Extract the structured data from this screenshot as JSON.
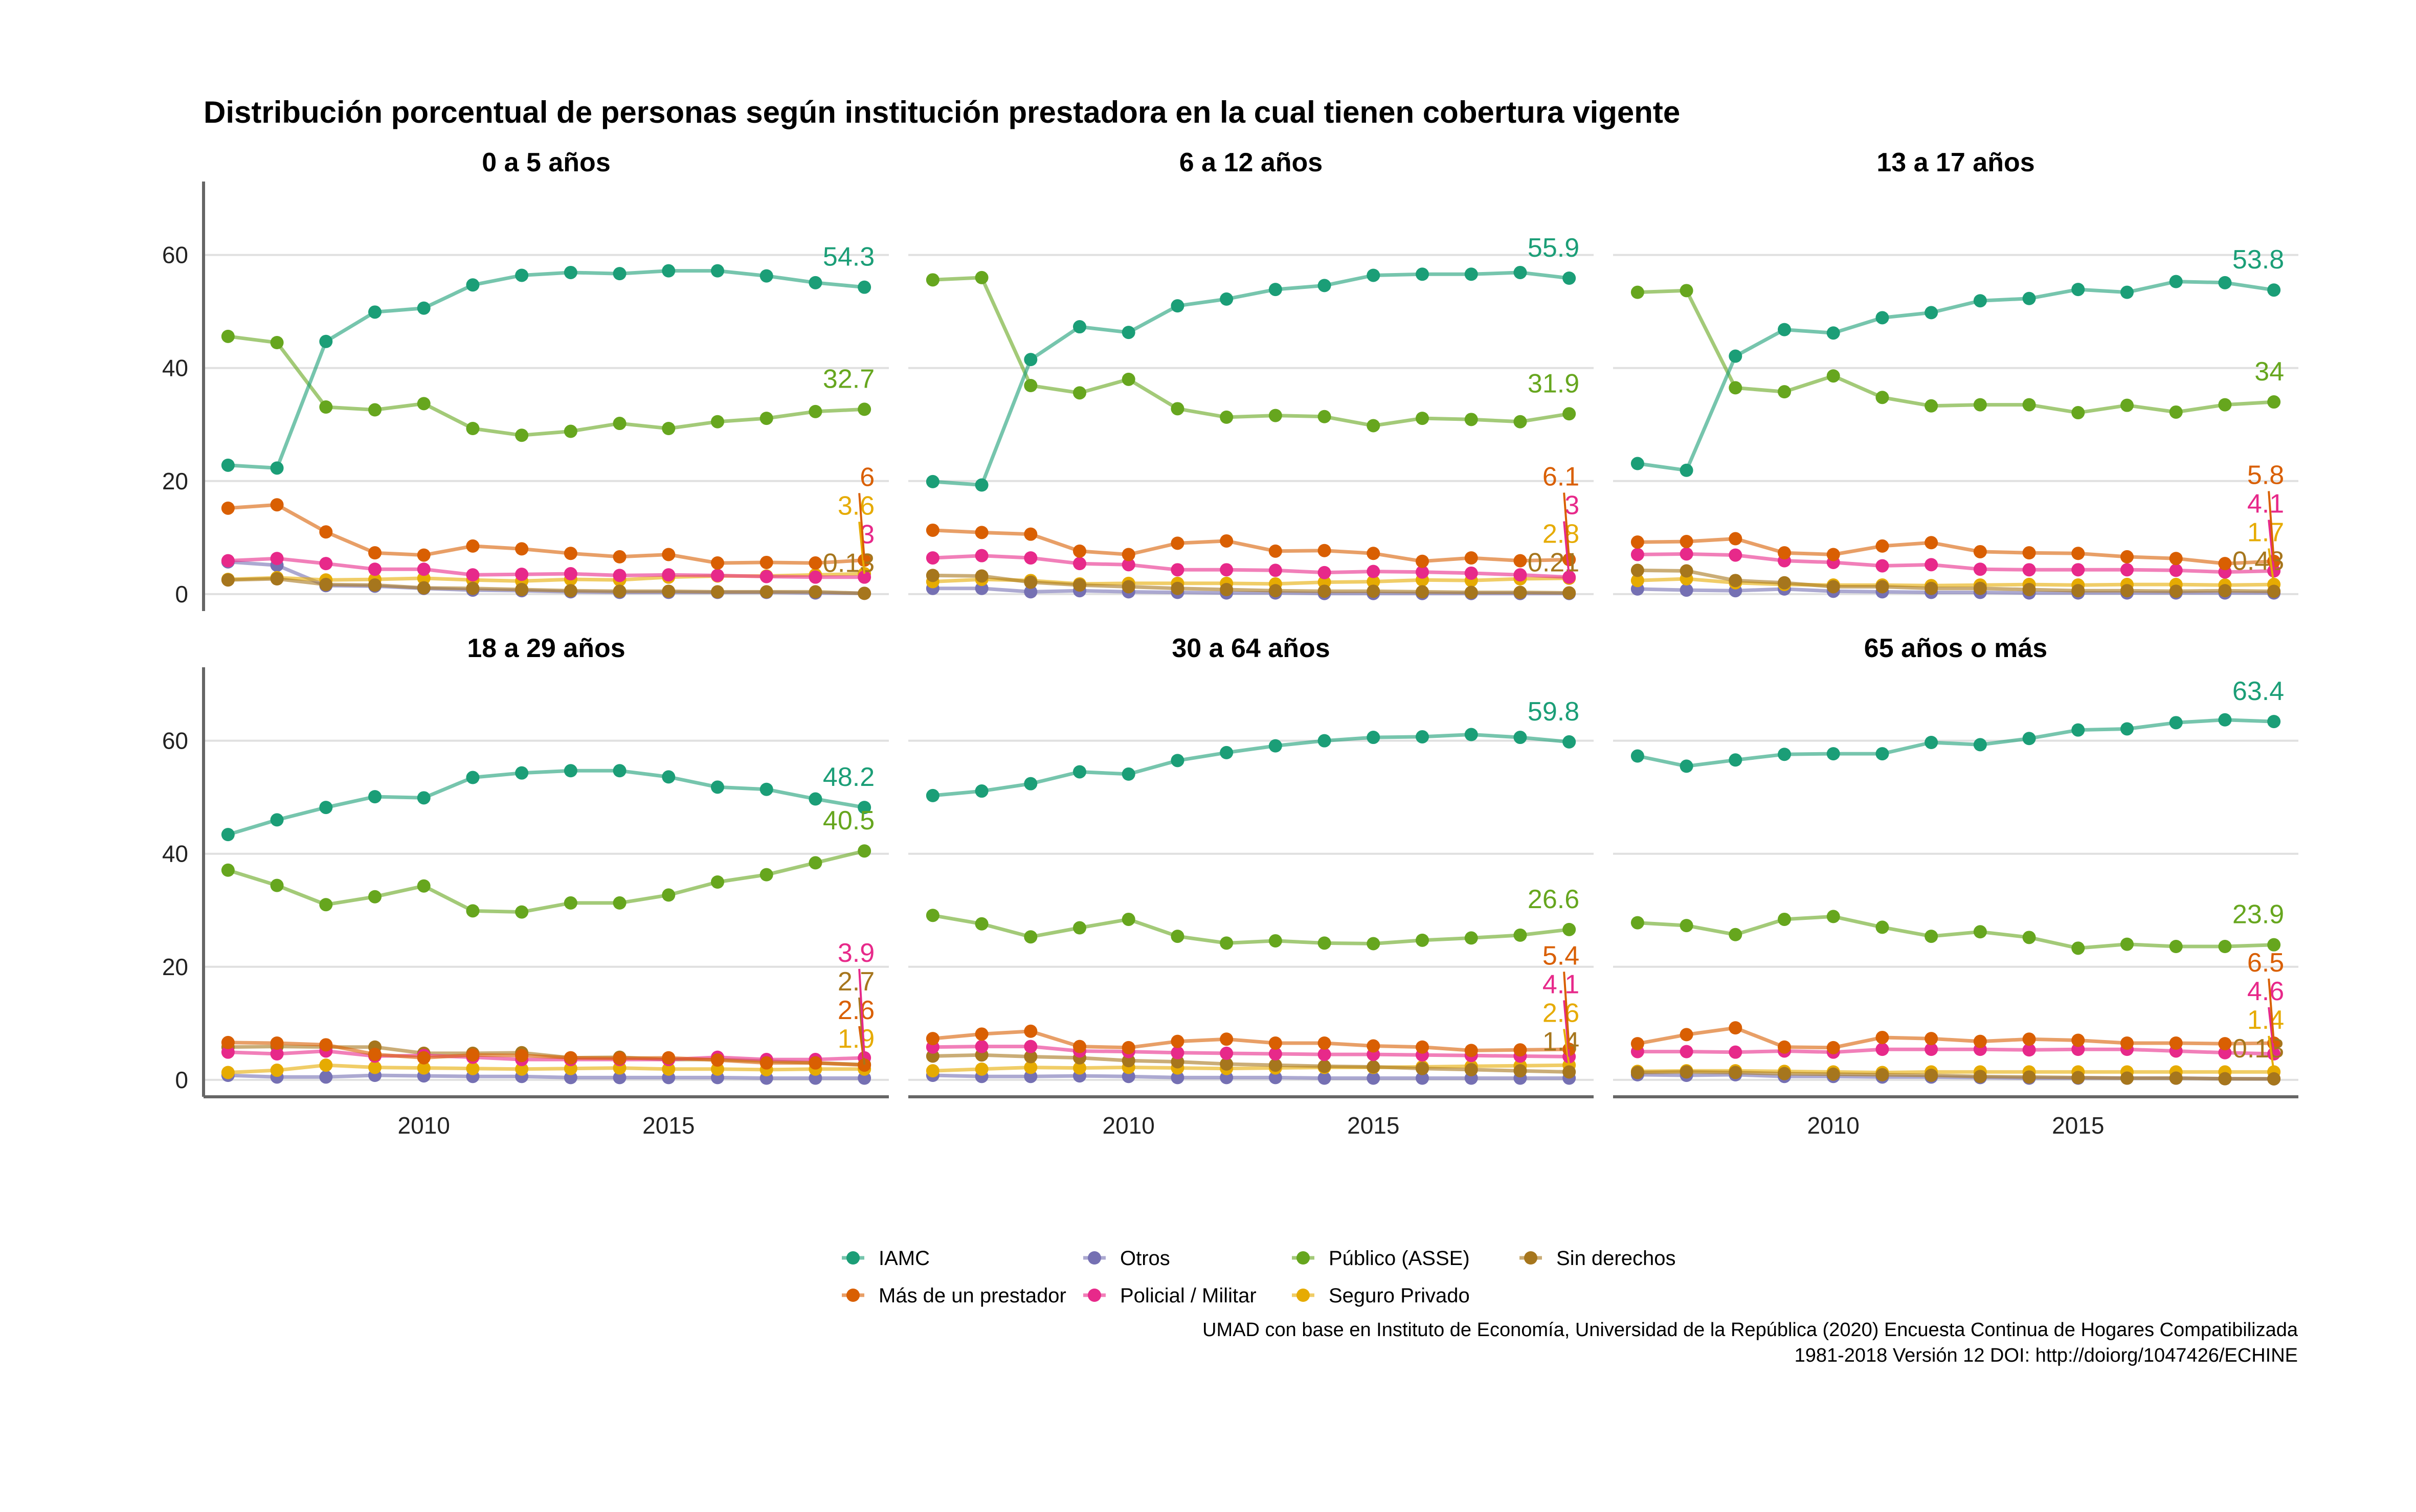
{
  "chart_data": {
    "type": "line",
    "title": "Distribución porcentual de personas según institución prestadora en la cual tienen cobertura vigente",
    "caption_line1": "UMAD con base en Instituto de Economía, Universidad de la República (2020) Encuesta Continua de Hogares Compatibilizada",
    "caption_line2": "1981-2018 Versión 12 DOI: http://doiorg/1047426/ECHINE",
    "x": [
      2006,
      2007,
      2008,
      2009,
      2010,
      2011,
      2012,
      2013,
      2014,
      2015,
      2016,
      2017,
      2018,
      2019
    ],
    "xlim": [
      2005.5,
      2019.5
    ],
    "ylim": [
      -3,
      73
    ],
    "x_ticks": [
      2010,
      2015
    ],
    "y_ticks": [
      0,
      20,
      40,
      60
    ],
    "grid": "horizontal",
    "legend_position": "bottom",
    "legend": [
      {
        "key": "iamc",
        "label": "IAMC",
        "color": "#1B9E77"
      },
      {
        "key": "otros",
        "label": "Otros",
        "color": "#7570B3"
      },
      {
        "key": "asse",
        "label": "Público (ASSE)",
        "color": "#66A61E"
      },
      {
        "key": "sinder",
        "label": "Sin derechos",
        "color": "#A6761D"
      },
      {
        "key": "mas",
        "label": "Más de un prestador",
        "color": "#D95F02"
      },
      {
        "key": "policial",
        "label": "Policial / Militar",
        "color": "#E7298A"
      },
      {
        "key": "privado",
        "label": "Seguro Privado",
        "color": "#E6AB02"
      }
    ],
    "panels": [
      {
        "title": "0 a 5 años",
        "series": {
          "iamc": [
            22.8,
            22.3,
            44.7,
            49.9,
            50.6,
            54.7,
            56.4,
            56.9,
            56.7,
            57.2,
            57.2,
            56.3,
            55.1,
            54.3
          ],
          "asse": [
            45.6,
            44.5,
            33.1,
            32.6,
            33.7,
            29.3,
            28.1,
            28.8,
            30.2,
            29.3,
            30.5,
            31.1,
            32.3,
            32.7
          ],
          "mas": [
            15.2,
            15.8,
            11.0,
            7.3,
            6.9,
            8.5,
            8.0,
            7.2,
            6.6,
            7.0,
            5.5,
            5.6,
            5.5,
            6.0
          ],
          "policial": [
            5.9,
            6.3,
            5.4,
            4.4,
            4.4,
            3.4,
            3.5,
            3.6,
            3.3,
            3.4,
            3.3,
            3.1,
            3.0,
            3.0
          ],
          "otros": [
            5.7,
            5.1,
            1.5,
            1.4,
            1.0,
            0.7,
            0.6,
            0.4,
            0.3,
            0.3,
            0.3,
            0.3,
            0.2,
            0.13
          ],
          "privado": [
            2.6,
            2.9,
            2.5,
            2.6,
            2.8,
            2.5,
            2.3,
            2.6,
            2.5,
            3.0,
            3.2,
            3.2,
            3.4,
            3.6
          ],
          "sinder": [
            2.5,
            2.7,
            1.7,
            1.6,
            1.1,
            1.0,
            0.8,
            0.6,
            0.5,
            0.5,
            0.4,
            0.4,
            0.4,
            0.13
          ]
        },
        "end_labels": [
          {
            "key": "iamc",
            "text": "54.3",
            "value": 54.3
          },
          {
            "key": "asse",
            "text": "32.7",
            "value": 32.7
          },
          {
            "key": "mas",
            "text": "6",
            "value": 6.0
          },
          {
            "key": "privado",
            "text": "3.6",
            "value": 3.6
          },
          {
            "key": "policial",
            "text": "3",
            "value": 3.0
          },
          {
            "key": "sinder",
            "text": "0.13",
            "value": 0.13
          }
        ]
      },
      {
        "title": "6 a 12 años",
        "series": {
          "iamc": [
            19.9,
            19.3,
            41.5,
            47.3,
            46.3,
            51.0,
            52.2,
            53.9,
            54.6,
            56.4,
            56.6,
            56.6,
            56.9,
            55.9
          ],
          "asse": [
            55.6,
            56.0,
            36.9,
            35.6,
            38.0,
            32.8,
            31.3,
            31.6,
            31.4,
            29.8,
            31.1,
            30.9,
            30.5,
            31.9
          ],
          "mas": [
            11.3,
            10.9,
            10.6,
            7.6,
            7.0,
            9.0,
            9.4,
            7.6,
            7.7,
            7.2,
            5.8,
            6.4,
            5.9,
            6.1
          ],
          "policial": [
            6.4,
            6.8,
            6.4,
            5.4,
            5.2,
            4.3,
            4.3,
            4.2,
            3.8,
            4.0,
            3.9,
            3.7,
            3.4,
            3.0
          ],
          "otros": [
            1.0,
            1.0,
            0.4,
            0.6,
            0.4,
            0.3,
            0.2,
            0.2,
            0.1,
            0.1,
            0.1,
            0.1,
            0.1,
            0.1
          ],
          "privado": [
            2.2,
            2.6,
            2.4,
            1.8,
            1.9,
            1.9,
            1.9,
            1.8,
            2.1,
            2.2,
            2.5,
            2.4,
            2.7,
            2.8
          ],
          "sinder": [
            3.3,
            3.2,
            2.1,
            1.6,
            1.3,
            1.0,
            0.8,
            0.6,
            0.5,
            0.5,
            0.4,
            0.3,
            0.3,
            0.21
          ]
        },
        "end_labels": [
          {
            "key": "iamc",
            "text": "55.9",
            "value": 55.9
          },
          {
            "key": "asse",
            "text": "31.9",
            "value": 31.9
          },
          {
            "key": "mas",
            "text": "6.1",
            "value": 6.1
          },
          {
            "key": "policial",
            "text": "3",
            "value": 3.0
          },
          {
            "key": "privado",
            "text": "2.8",
            "value": 2.8
          },
          {
            "key": "sinder",
            "text": "0.21",
            "value": 0.21
          }
        ]
      },
      {
        "title": "13 a 17 años",
        "series": {
          "iamc": [
            23.1,
            21.9,
            42.1,
            46.8,
            46.2,
            48.9,
            49.8,
            51.9,
            52.3,
            53.9,
            53.4,
            55.3,
            55.1,
            53.8
          ],
          "asse": [
            53.4,
            53.7,
            36.5,
            35.8,
            38.6,
            34.8,
            33.3,
            33.5,
            33.5,
            32.1,
            33.4,
            32.2,
            33.5,
            34.0
          ],
          "mas": [
            9.2,
            9.3,
            9.8,
            7.3,
            7.0,
            8.5,
            9.1,
            7.5,
            7.3,
            7.2,
            6.6,
            6.3,
            5.4,
            5.8
          ],
          "policial": [
            7.0,
            7.1,
            6.9,
            5.9,
            5.6,
            5.0,
            5.2,
            4.4,
            4.3,
            4.3,
            4.3,
            4.2,
            3.9,
            4.1
          ],
          "otros": [
            0.9,
            0.7,
            0.6,
            0.9,
            0.5,
            0.4,
            0.3,
            0.3,
            0.2,
            0.2,
            0.2,
            0.2,
            0.2,
            0.2
          ],
          "privado": [
            2.4,
            2.7,
            2.0,
            1.7,
            1.6,
            1.6,
            1.5,
            1.6,
            1.7,
            1.6,
            1.7,
            1.7,
            1.6,
            1.7
          ],
          "sinder": [
            4.2,
            4.1,
            2.4,
            2.0,
            1.3,
            1.3,
            1.0,
            1.0,
            0.8,
            0.6,
            0.6,
            0.5,
            0.6,
            0.48
          ]
        },
        "end_labels": [
          {
            "key": "iamc",
            "text": "53.8",
            "value": 53.8
          },
          {
            "key": "asse",
            "text": "34",
            "value": 34.0
          },
          {
            "key": "mas",
            "text": "5.8",
            "value": 5.8
          },
          {
            "key": "policial",
            "text": "4.1",
            "value": 4.1
          },
          {
            "key": "sinder",
            "text": "0.48",
            "value": 0.48
          },
          {
            "key": "privado",
            "text": "1.7",
            "value": 1.7
          }
        ]
      },
      {
        "title": "18 a 29 años",
        "series": {
          "iamc": [
            43.4,
            46.0,
            48.2,
            50.1,
            49.9,
            53.5,
            54.3,
            54.7,
            54.7,
            53.6,
            51.8,
            51.4,
            49.7,
            48.2
          ],
          "asse": [
            37.1,
            34.4,
            31.0,
            32.4,
            34.3,
            29.9,
            29.7,
            31.3,
            31.3,
            32.7,
            35.0,
            36.3,
            38.4,
            40.5
          ],
          "mas": [
            6.6,
            6.5,
            6.2,
            4.5,
            3.9,
            4.4,
            4.3,
            3.9,
            3.8,
            3.9,
            3.5,
            3.0,
            3.0,
            2.6
          ],
          "policial": [
            4.9,
            4.6,
            5.1,
            4.2,
            4.3,
            4.0,
            3.6,
            3.6,
            3.6,
            3.6,
            4.0,
            3.6,
            3.6,
            3.9
          ],
          "otros": [
            0.8,
            0.5,
            0.5,
            0.8,
            0.7,
            0.6,
            0.6,
            0.4,
            0.4,
            0.4,
            0.4,
            0.3,
            0.3,
            0.3
          ],
          "privado": [
            1.3,
            1.7,
            2.6,
            2.2,
            2.1,
            2.0,
            1.9,
            2.0,
            2.1,
            1.9,
            1.9,
            1.8,
            1.9,
            1.9
          ],
          "sinder": [
            5.8,
            5.9,
            5.8,
            5.8,
            4.7,
            4.7,
            4.8,
            3.9,
            4.0,
            3.6,
            3.6,
            3.3,
            3.0,
            2.7
          ]
        },
        "end_labels": [
          {
            "key": "iamc",
            "text": "48.2",
            "value": 48.2
          },
          {
            "key": "asse",
            "text": "40.5",
            "value": 40.5
          },
          {
            "key": "policial",
            "text": "3.9",
            "value": 3.9
          },
          {
            "key": "sinder",
            "text": "2.7",
            "value": 2.7
          },
          {
            "key": "privado",
            "text": "1.9",
            "value": 1.9
          },
          {
            "key": "mas",
            "text": "2.6",
            "value": 2.6
          }
        ]
      },
      {
        "title": "30 a 64 años",
        "series": {
          "iamc": [
            50.3,
            51.1,
            52.4,
            54.5,
            54.1,
            56.5,
            57.9,
            59.1,
            60.0,
            60.6,
            60.7,
            61.1,
            60.6,
            59.8
          ],
          "asse": [
            29.1,
            27.6,
            25.3,
            26.9,
            28.4,
            25.4,
            24.2,
            24.6,
            24.2,
            24.1,
            24.7,
            25.1,
            25.6,
            26.6
          ],
          "mas": [
            7.3,
            8.1,
            8.6,
            5.9,
            5.7,
            6.8,
            7.2,
            6.5,
            6.5,
            6.0,
            5.8,
            5.2,
            5.3,
            5.4
          ],
          "policial": [
            5.8,
            5.9,
            5.9,
            5.1,
            5.0,
            4.8,
            4.7,
            4.6,
            4.5,
            4.5,
            4.4,
            4.3,
            4.2,
            4.1
          ],
          "otros": [
            0.8,
            0.6,
            0.6,
            0.7,
            0.6,
            0.4,
            0.4,
            0.4,
            0.3,
            0.3,
            0.3,
            0.3,
            0.3,
            0.3
          ],
          "privado": [
            1.6,
            1.9,
            2.2,
            2.1,
            2.2,
            2.1,
            2.0,
            2.1,
            2.2,
            2.2,
            2.3,
            2.4,
            2.5,
            2.6
          ],
          "sinder": [
            4.2,
            4.4,
            4.1,
            3.9,
            3.4,
            3.2,
            2.8,
            2.6,
            2.4,
            2.3,
            2.0,
            1.8,
            1.6,
            1.4
          ]
        },
        "end_labels": [
          {
            "key": "iamc",
            "text": "59.8",
            "value": 59.8
          },
          {
            "key": "asse",
            "text": "26.6",
            "value": 26.6
          },
          {
            "key": "mas",
            "text": "5.4",
            "value": 5.4
          },
          {
            "key": "policial",
            "text": "4.1",
            "value": 4.1
          },
          {
            "key": "privado",
            "text": "2.6",
            "value": 2.6
          },
          {
            "key": "sinder",
            "text": "1.4",
            "value": 1.4
          }
        ]
      },
      {
        "title": "65 años o más",
        "series": {
          "iamc": [
            57.3,
            55.5,
            56.6,
            57.6,
            57.7,
            57.7,
            59.7,
            59.3,
            60.4,
            61.9,
            62.1,
            63.2,
            63.7,
            63.4
          ],
          "asse": [
            27.8,
            27.3,
            25.7,
            28.4,
            28.9,
            27.0,
            25.4,
            26.2,
            25.2,
            23.3,
            24.0,
            23.6,
            23.6,
            23.9
          ],
          "mas": [
            6.4,
            8.0,
            9.2,
            5.8,
            5.7,
            7.5,
            7.3,
            6.8,
            7.2,
            7.0,
            6.5,
            6.5,
            6.4,
            6.5
          ],
          "policial": [
            5.0,
            5.0,
            4.9,
            5.1,
            4.9,
            5.4,
            5.4,
            5.4,
            5.3,
            5.4,
            5.4,
            5.1,
            4.8,
            4.6
          ],
          "otros": [
            0.9,
            0.8,
            0.9,
            0.6,
            0.6,
            0.5,
            0.5,
            0.4,
            0.3,
            0.3,
            0.3,
            0.3,
            0.2,
            0.18
          ],
          "privado": [
            1.5,
            1.6,
            1.6,
            1.5,
            1.4,
            1.3,
            1.4,
            1.4,
            1.4,
            1.4,
            1.4,
            1.4,
            1.4,
            1.4
          ],
          "sinder": [
            1.3,
            1.4,
            1.3,
            1.1,
            1.0,
            0.9,
            0.8,
            0.6,
            0.5,
            0.4,
            0.3,
            0.3,
            0.2,
            0.18
          ]
        },
        "end_labels": [
          {
            "key": "iamc",
            "text": "63.4",
            "value": 63.4
          },
          {
            "key": "asse",
            "text": "23.9",
            "value": 23.9
          },
          {
            "key": "mas",
            "text": "6.5",
            "value": 6.5
          },
          {
            "key": "policial",
            "text": "4.6",
            "value": 4.6
          },
          {
            "key": "sinder",
            "text": "0.18",
            "value": 0.18
          },
          {
            "key": "privado",
            "text": "1.4",
            "value": 1.4
          }
        ]
      }
    ]
  }
}
